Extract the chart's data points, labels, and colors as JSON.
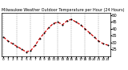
{
  "title": "Milwaukee Weather Outdoor Temperature per Hour (24 Hours)",
  "hours": [
    0,
    1,
    2,
    3,
    4,
    5,
    6,
    7,
    8,
    9,
    10,
    11,
    12,
    13,
    14,
    15,
    16,
    17,
    18,
    19,
    20,
    21,
    22,
    23
  ],
  "temps": [
    34,
    31,
    29,
    27,
    25,
    23,
    24,
    28,
    33,
    37,
    41,
    44,
    45,
    43,
    46,
    47,
    45,
    43,
    40,
    37,
    34,
    31,
    29,
    28
  ],
  "line_color": "#cc0000",
  "dot_color": "#000000",
  "bg_color": "#ffffff",
  "grid_color": "#888888",
  "ylim": [
    20,
    52
  ],
  "yticks": [
    25,
    30,
    35,
    40,
    45,
    50
  ],
  "ytick_labels": [
    "25",
    "30",
    "35",
    "40",
    "45",
    "50"
  ],
  "xtick_hours": [
    0,
    1,
    2,
    3,
    4,
    5,
    6,
    7,
    8,
    9,
    10,
    11,
    12,
    13,
    14,
    15,
    16,
    17,
    18,
    19,
    20,
    21,
    22,
    23
  ],
  "vgrid_hours": [
    0,
    3,
    6,
    9,
    12,
    15,
    18,
    21
  ],
  "ylabel_fontsize": 3.8,
  "xlabel_fontsize": 3.2,
  "title_fontsize": 3.5,
  "title_color": "#000000",
  "dot_size": 2.0,
  "line_width": 0.9
}
